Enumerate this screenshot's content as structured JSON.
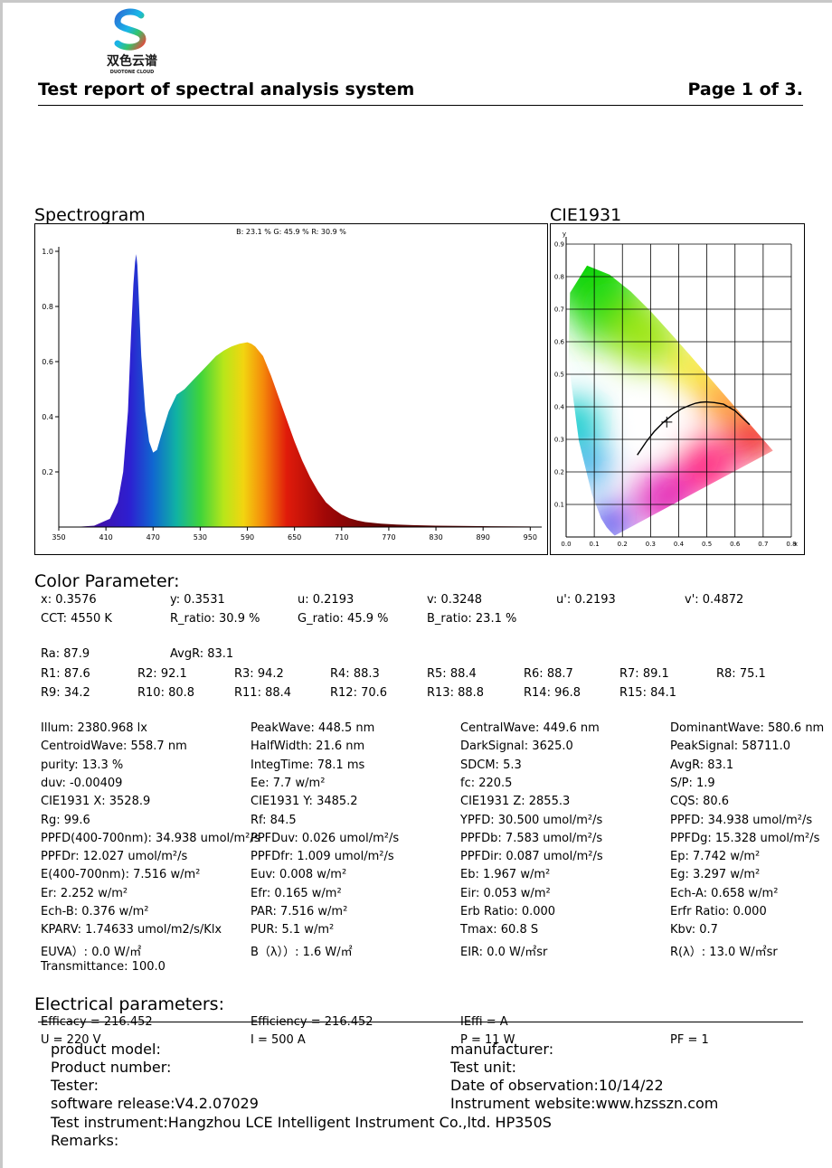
{
  "header": {
    "logo_cn": "双色云谱",
    "logo_en": "DUOTONE CLOUD",
    "title": "Test report of spectral analysis system",
    "page": "Page 1 of 3."
  },
  "spectrogram": {
    "heading": "Spectrogram",
    "legend": "B: 23.1 %  G: 45.9 %  R: 30.9 %",
    "chart_data": {
      "type": "area",
      "xlim": [
        350,
        960
      ],
      "ylim": [
        0,
        1.0
      ],
      "x_ticks": [
        "350",
        "410",
        "470",
        "530",
        "590",
        "650",
        "710",
        "770",
        "830",
        "890",
        "950"
      ],
      "y_ticks": [
        "1.0",
        "0.8",
        "0.6",
        "0.4",
        "0.2"
      ],
      "x": [
        370,
        395,
        415,
        425,
        432,
        438,
        442,
        445,
        447,
        448.5,
        450,
        452,
        455,
        460,
        465,
        470,
        475,
        480,
        490,
        500,
        510,
        520,
        530,
        540,
        550,
        560,
        570,
        580,
        590,
        595,
        600,
        610,
        620,
        630,
        640,
        650,
        660,
        670,
        680,
        690,
        700,
        710,
        720,
        730,
        740,
        760,
        780,
        800,
        830,
        860,
        900,
        950
      ],
      "y": [
        0.0,
        0.005,
        0.03,
        0.09,
        0.2,
        0.42,
        0.7,
        0.88,
        0.96,
        0.99,
        0.95,
        0.82,
        0.62,
        0.42,
        0.31,
        0.27,
        0.28,
        0.33,
        0.42,
        0.48,
        0.5,
        0.53,
        0.56,
        0.59,
        0.62,
        0.64,
        0.655,
        0.665,
        0.67,
        0.665,
        0.655,
        0.62,
        0.55,
        0.47,
        0.39,
        0.31,
        0.24,
        0.18,
        0.13,
        0.09,
        0.065,
        0.045,
        0.032,
        0.024,
        0.018,
        0.012,
        0.009,
        0.007,
        0.005,
        0.004,
        0.003,
        0.002
      ]
    }
  },
  "cie": {
    "heading": "CIE1931",
    "chart_data": {
      "type": "scatter",
      "xlim": [
        0,
        0.8
      ],
      "ylim": [
        0,
        0.9
      ],
      "x_ticks": [
        "0.0",
        "0.1",
        "0.2",
        "0.3",
        "0.4",
        "0.5",
        "0.6",
        "0.7",
        "0.8"
      ],
      "y_ticks": [
        "0.1",
        "0.2",
        "0.3",
        "0.4",
        "0.5",
        "0.6",
        "0.7",
        "0.8",
        "0.9"
      ],
      "xlabel": "x",
      "ylabel": "y",
      "locus_x": [
        0.1741,
        0.1738,
        0.1733,
        0.1726,
        0.1714,
        0.1689,
        0.1644,
        0.1566,
        0.144,
        0.1241,
        0.0913,
        0.0454,
        0.0082,
        0.0139,
        0.0743,
        0.1547,
        0.2296,
        0.3016,
        0.3731,
        0.4441,
        0.5125,
        0.5752,
        0.627,
        0.6658,
        0.6915,
        0.7079,
        0.7347
      ],
      "locus_y": [
        0.005,
        0.0049,
        0.0048,
        0.0048,
        0.0051,
        0.0069,
        0.0109,
        0.0177,
        0.0297,
        0.0578,
        0.1327,
        0.295,
        0.5384,
        0.7502,
        0.8338,
        0.8059,
        0.7543,
        0.6923,
        0.6245,
        0.5547,
        0.4866,
        0.4242,
        0.3725,
        0.334,
        0.3083,
        0.292,
        0.2653
      ],
      "planck_x": [
        0.253,
        0.285,
        0.313,
        0.345,
        0.38,
        0.41,
        0.437,
        0.46,
        0.478,
        0.497,
        0.527,
        0.559,
        0.6,
        0.652
      ],
      "planck_y": [
        0.252,
        0.293,
        0.324,
        0.352,
        0.377,
        0.394,
        0.404,
        0.411,
        0.414,
        0.415,
        0.413,
        0.408,
        0.388,
        0.345
      ],
      "point": {
        "x": 0.3576,
        "y": 0.3531
      }
    }
  },
  "color": {
    "heading": "Color Parameter:",
    "row1": [
      "x: 0.3576",
      "y: 0.3531",
      "u: 0.2193",
      "v: 0.3248",
      "u': 0.2193",
      "v': 0.4872"
    ],
    "row2": [
      "CCT: 4550 K",
      "R_ratio: 30.9 %",
      "G_ratio: 45.9 %",
      "B_ratio: 23.1 %"
    ],
    "ra_row": [
      "Ra: 87.9",
      "AvgR: 83.1"
    ],
    "r_row1": [
      "R1: 87.6",
      "R2: 92.1",
      "R3: 94.2",
      "R4: 88.3",
      "R5: 88.4",
      "R6: 88.7",
      "R7: 89.1",
      "R8: 75.1"
    ],
    "r_row2": [
      "R9: 34.2",
      "R10: 80.8",
      "R11: 88.4",
      "R12: 70.6",
      "R13: 88.8",
      "R14: 96.8",
      "R15: 84.1"
    ]
  },
  "params": {
    "col1": [
      "Illum: 2380.968 lx",
      "CentroidWave: 558.7 nm",
      "purity: 13.3 %",
      "duv: -0.00409",
      "CIE1931 X: 3528.9",
      "Rg: 99.6",
      "PPFD(400-700nm): 34.938 umol/m²/s",
      "PPFDr: 12.027 umol/m²/s",
      "E(400-700nm): 7.516 w/m²",
      "Er: 2.252 w/m²",
      "Ech-B: 0.376 w/m²",
      "KPARV: 1.74633 umol/m2/s/Klx",
      "EUVA）: 0.0 W/㎡",
      "Transmittance: 100.0"
    ],
    "col2": [
      "PeakWave: 448.5 nm",
      "HalfWidth: 21.6 nm",
      "IntegTime: 78.1 ms",
      "Ee: 7.7 w/m²",
      "CIE1931 Y: 3485.2",
      "Rf: 84.5",
      "PPFDuv: 0.026 umol/m²/s",
      "PPFDfr: 1.009 umol/m²/s",
      "Euv: 0.008 w/m²",
      "Efr: 0.165 w/m²",
      "PAR: 7.516 w/m²",
      "PUR: 5.1 w/m²",
      "B（λ））: 1.6 W/㎡"
    ],
    "col3": [
      "CentralWave: 449.6 nm",
      "DarkSignal: 3625.0",
      "SDCM: 5.3",
      "fc: 220.5",
      "CIE1931 Z: 2855.3",
      "YPFD: 30.500 umol/m²/s",
      "PPFDb: 7.583 umol/m²/s",
      "PPFDir: 0.087 umol/m²/s",
      "Eb: 1.967 w/m²",
      "Eir: 0.053 w/m²",
      "Erb Ratio: 0.000",
      "Tmax: 60.8 S",
      "EIR: 0.0 W/㎡sr"
    ],
    "col4": [
      "DominantWave: 580.6 nm",
      "PeakSignal: 58711.0",
      "AvgR: 83.1",
      "S/P: 1.9",
      "CQS: 80.6",
      "PPFD: 34.938 umol/m²/s",
      "PPFDg: 15.328 umol/m²/s",
      "Ep: 7.742 w/m²",
      "Eg: 3.297 w/m²",
      "Ech-A: 0.658 w/m²",
      "Erfr Ratio: 0.000",
      "Kbv: 0.7",
      "R(λ）: 13.0 W/㎡sr"
    ]
  },
  "electrical": {
    "heading": "Electrical parameters:",
    "row1": [
      "Efficacy = 216.452",
      "Efficiency = 216.452",
      "IEffi = A"
    ],
    "row2": [
      "U = 220 V",
      "I = 500 A",
      "P = 11 W",
      "PF = 1"
    ]
  },
  "info": {
    "product_model": "product model:",
    "manufacturer": "manufacturer:",
    "product_number": "Product number:",
    "test_unit": "Test unit:",
    "tester": "Tester:",
    "date": "Date of observation:10/14/22",
    "software": "software release:V4.2.07029",
    "website": "Instrument website:www.hzsszn.com",
    "instrument": "Test instrument:Hangzhou LCE Intelligent Instrument Co.,ltd. HP350S",
    "remarks": "Remarks:"
  }
}
